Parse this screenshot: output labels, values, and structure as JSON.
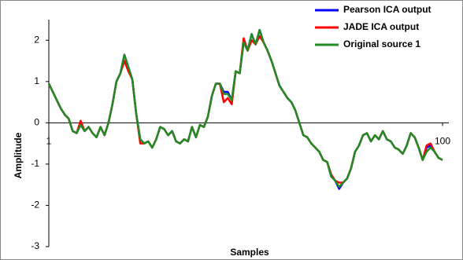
{
  "chart_data": {
    "type": "line",
    "x_label": "Samples",
    "y_label": "Amplitude",
    "x": [
      1,
      2,
      3,
      4,
      5,
      6,
      7,
      8,
      9,
      10,
      11,
      12,
      13,
      14,
      15,
      16,
      17,
      18,
      19,
      20,
      21,
      22,
      23,
      24,
      25,
      26,
      27,
      28,
      29,
      30,
      31,
      32,
      33,
      34,
      35,
      36,
      37,
      38,
      39,
      40,
      41,
      42,
      43,
      44,
      45,
      46,
      47,
      48,
      49,
      50,
      51,
      52,
      53,
      54,
      55,
      56,
      57,
      58,
      59,
      60,
      61,
      62,
      63,
      64,
      65,
      66,
      67,
      68,
      69,
      70,
      71,
      72,
      73,
      74,
      75,
      76,
      77,
      78,
      79,
      80,
      81,
      82,
      83,
      84,
      85,
      86,
      87,
      88,
      89,
      90,
      91,
      92,
      93,
      94,
      95,
      96,
      97,
      98,
      99,
      100
    ],
    "xlim": [
      1,
      100
    ],
    "xticks": [
      1,
      100
    ],
    "ylim": [
      -3,
      2.5
    ],
    "yticks": [
      -3,
      -2,
      -1,
      0,
      1,
      2
    ],
    "legend": "top-right",
    "series": [
      {
        "name": "Pearson ICA output",
        "color": "#0000ff",
        "values": [
          0.95,
          0.75,
          0.55,
          0.35,
          0.2,
          0.1,
          -0.2,
          -0.25,
          -0.05,
          -0.2,
          -0.1,
          -0.25,
          -0.35,
          -0.1,
          -0.3,
          0.0,
          0.45,
          1.0,
          1.2,
          1.65,
          1.35,
          1.05,
          0.2,
          -0.4,
          -0.5,
          -0.45,
          -0.6,
          -0.4,
          -0.1,
          -0.15,
          -0.3,
          -0.2,
          -0.45,
          -0.5,
          -0.4,
          -0.45,
          -0.1,
          -0.35,
          -0.05,
          -0.1,
          0.15,
          0.65,
          0.95,
          0.95,
          0.75,
          0.75,
          0.55,
          1.25,
          1.2,
          1.95,
          1.75,
          2.15,
          1.9,
          2.25,
          1.95,
          1.75,
          1.5,
          1.2,
          0.9,
          0.75,
          0.6,
          0.5,
          0.3,
          0.0,
          -0.3,
          -0.35,
          -0.5,
          -0.6,
          -0.7,
          -0.9,
          -0.95,
          -1.3,
          -1.4,
          -1.6,
          -1.45,
          -1.35,
          -1.1,
          -0.7,
          -0.55,
          -0.3,
          -0.25,
          -0.45,
          -0.3,
          -0.4,
          -0.2,
          -0.4,
          -0.45,
          -0.6,
          -0.65,
          -0.75,
          -0.55,
          -0.25,
          -0.35,
          -0.6,
          -0.9,
          -0.6,
          -0.55,
          -0.7,
          -0.85,
          -0.9
        ]
      },
      {
        "name": "JADE ICA output",
        "color": "#ff0000",
        "values": [
          0.95,
          0.75,
          0.55,
          0.35,
          0.2,
          0.1,
          -0.2,
          -0.25,
          0.05,
          -0.2,
          -0.1,
          -0.25,
          -0.35,
          -0.1,
          -0.3,
          0.0,
          0.45,
          1.0,
          1.2,
          1.5,
          1.25,
          1.05,
          0.2,
          -0.5,
          -0.5,
          -0.45,
          -0.6,
          -0.4,
          -0.1,
          -0.15,
          -0.3,
          -0.2,
          -0.45,
          -0.5,
          -0.4,
          -0.45,
          -0.1,
          -0.35,
          -0.05,
          -0.1,
          0.15,
          0.65,
          0.95,
          0.95,
          0.5,
          0.6,
          0.45,
          1.25,
          1.2,
          2.05,
          1.75,
          2.0,
          1.9,
          2.1,
          1.95,
          1.75,
          1.5,
          1.2,
          0.9,
          0.75,
          0.6,
          0.5,
          0.3,
          0.0,
          -0.3,
          -0.35,
          -0.5,
          -0.6,
          -0.7,
          -0.9,
          -0.95,
          -1.25,
          -1.4,
          -1.45,
          -1.45,
          -1.35,
          -1.1,
          -0.7,
          -0.55,
          -0.3,
          -0.25,
          -0.45,
          -0.3,
          -0.4,
          -0.2,
          -0.4,
          -0.45,
          -0.6,
          -0.65,
          -0.75,
          -0.55,
          -0.25,
          -0.35,
          -0.6,
          -0.9,
          -0.55,
          -0.5,
          -0.7,
          -0.85,
          -0.9
        ]
      },
      {
        "name": "Original source 1",
        "color": "#228b22",
        "values": [
          0.95,
          0.75,
          0.55,
          0.35,
          0.2,
          0.1,
          -0.2,
          -0.25,
          -0.05,
          -0.2,
          -0.1,
          -0.25,
          -0.35,
          -0.1,
          -0.3,
          0.0,
          0.45,
          1.0,
          1.2,
          1.65,
          1.35,
          1.05,
          0.2,
          -0.4,
          -0.5,
          -0.45,
          -0.6,
          -0.4,
          -0.1,
          -0.15,
          -0.3,
          -0.2,
          -0.45,
          -0.5,
          -0.4,
          -0.45,
          -0.1,
          -0.35,
          -0.05,
          -0.1,
          0.15,
          0.65,
          0.95,
          0.95,
          0.7,
          0.7,
          0.55,
          1.25,
          1.2,
          1.95,
          1.75,
          2.15,
          1.9,
          2.25,
          1.95,
          1.75,
          1.5,
          1.2,
          0.9,
          0.75,
          0.6,
          0.5,
          0.3,
          0.0,
          -0.3,
          -0.35,
          -0.5,
          -0.6,
          -0.7,
          -0.9,
          -0.95,
          -1.3,
          -1.4,
          -1.55,
          -1.45,
          -1.35,
          -1.1,
          -0.7,
          -0.55,
          -0.3,
          -0.25,
          -0.45,
          -0.3,
          -0.4,
          -0.2,
          -0.4,
          -0.45,
          -0.6,
          -0.65,
          -0.75,
          -0.55,
          -0.25,
          -0.35,
          -0.6,
          -0.9,
          -0.7,
          -0.6,
          -0.7,
          -0.85,
          -0.9
        ]
      }
    ]
  }
}
